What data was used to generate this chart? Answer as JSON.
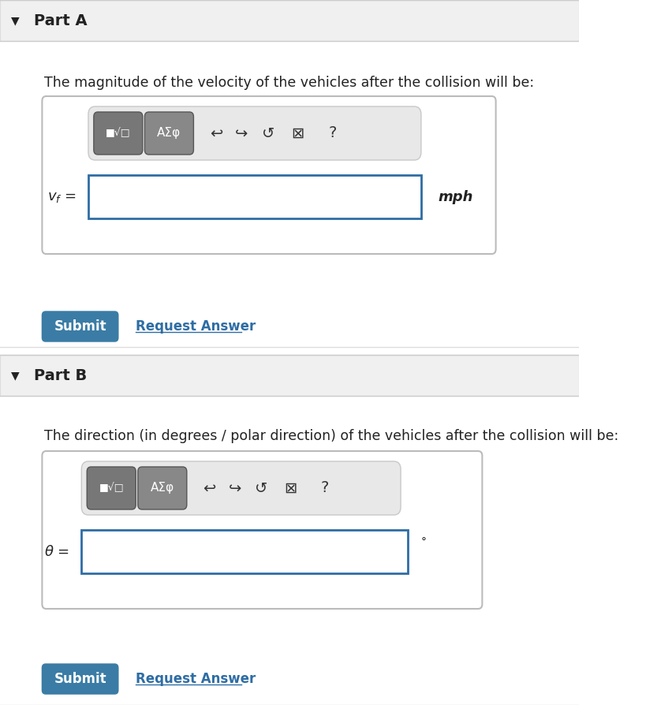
{
  "bg_color": "#f5f5f5",
  "white": "#ffffff",
  "panel_bg": "#ffffff",
  "border_color": "#cccccc",
  "header_bg": "#eeeeee",
  "blue_button": "#3a7ca5",
  "blue_link": "#2e6da4",
  "input_border": "#2e6da4",
  "toolbar_bg": "#e8e8e8",
  "btn_dark": "#6a6a6a",
  "text_color": "#222222",
  "part_a_label": "Part A",
  "part_b_label": "Part B",
  "part_a_text": "The magnitude of the velocity of the vehicles after the collision will be:",
  "part_b_text": "The direction (in degrees / polar direction) of the vehicles after the collision will be:",
  "vf_label": "$v_f$ =",
  "theta_label": "$\\theta$ =",
  "mph_label": "mph",
  "degree_label": "°",
  "submit_label": "Submit",
  "request_label": "Request Answer",
  "toolbar_icons": [
    "↰",
    "↱",
    "↺",
    "⊠",
    "?"
  ],
  "fig_width": 8.52,
  "fig_height": 8.94
}
